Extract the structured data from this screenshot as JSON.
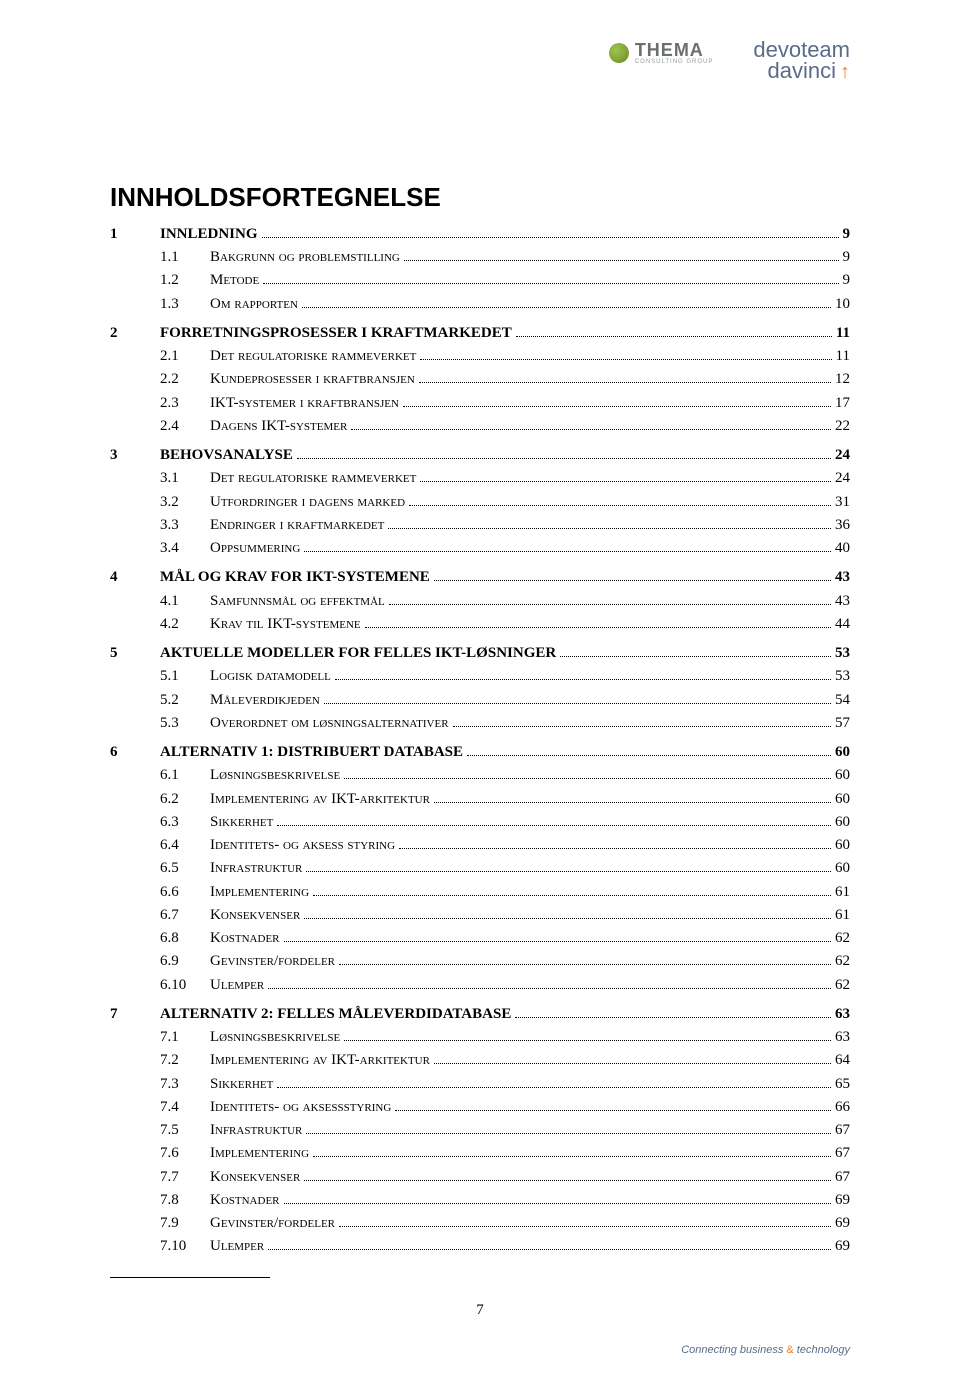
{
  "logos": {
    "thema_text": "THEMA",
    "thema_sub": "CONSULTING GROUP",
    "devoteam1": "devoteam",
    "devoteam2": "davinci",
    "arrow": "↑"
  },
  "title": "INNHOLDSFORTEGNELSE",
  "page_number": "7",
  "footer": {
    "pre": "Connecting business ",
    "amp": "&",
    "post": " technology"
  },
  "entries": [
    {
      "lvl": 1,
      "num": "1",
      "label": "INNLEDNING",
      "pg": "9"
    },
    {
      "lvl": 2,
      "num": "1.1",
      "label": "Bakgrunn og problemstilling",
      "pg": "9"
    },
    {
      "lvl": 2,
      "num": "1.2",
      "label": "Metode",
      "pg": "9"
    },
    {
      "lvl": 2,
      "num": "1.3",
      "label": "Om rapporten",
      "pg": "10"
    },
    {
      "lvl": 1,
      "num": "2",
      "label": "FORRETNINGSPROSESSER I KRAFTMARKEDET",
      "pg": "11"
    },
    {
      "lvl": 2,
      "num": "2.1",
      "label": "Det regulatoriske rammeverket",
      "pg": "11"
    },
    {
      "lvl": 2,
      "num": "2.2",
      "label": "Kundeprosesser i kraftbransjen",
      "pg": "12"
    },
    {
      "lvl": 2,
      "num": "2.3",
      "label": "IKT-systemer i kraftbransjen",
      "pg": "17"
    },
    {
      "lvl": 2,
      "num": "2.4",
      "label": "Dagens IKT-systemer",
      "pg": "22"
    },
    {
      "lvl": 1,
      "num": "3",
      "label": "BEHOVSANALYSE",
      "pg": "24"
    },
    {
      "lvl": 2,
      "num": "3.1",
      "label": "Det regulatoriske rammeverket",
      "pg": "24"
    },
    {
      "lvl": 2,
      "num": "3.2",
      "label": "Utfordringer i dagens marked",
      "pg": "31"
    },
    {
      "lvl": 2,
      "num": "3.3",
      "label": "Endringer i kraftmarkedet",
      "pg": "36"
    },
    {
      "lvl": 2,
      "num": "3.4",
      "label": "Oppsummering",
      "pg": "40"
    },
    {
      "lvl": 1,
      "num": "4",
      "label": "MÅL OG KRAV FOR IKT-SYSTEMENE",
      "pg": "43"
    },
    {
      "lvl": 2,
      "num": "4.1",
      "label": "Samfunnsmål og effektmål",
      "pg": "43"
    },
    {
      "lvl": 2,
      "num": "4.2",
      "label": "Krav til IKT-systemene",
      "pg": "44"
    },
    {
      "lvl": 1,
      "num": "5",
      "label": "AKTUELLE MODELLER FOR FELLES IKT-LØSNINGER",
      "pg": "53"
    },
    {
      "lvl": 2,
      "num": "5.1",
      "label": "Logisk datamodell",
      "pg": "53"
    },
    {
      "lvl": 2,
      "num": "5.2",
      "label": "Måleverdikjeden",
      "pg": "54"
    },
    {
      "lvl": 2,
      "num": "5.3",
      "label": "Overordnet om løsningsalternativer",
      "pg": "57"
    },
    {
      "lvl": 1,
      "num": "6",
      "label": "ALTERNATIV 1: DISTRIBUERT DATABASE",
      "pg": "60"
    },
    {
      "lvl": 2,
      "num": "6.1",
      "label": "Løsningsbeskrivelse",
      "pg": "60"
    },
    {
      "lvl": 2,
      "num": "6.2",
      "label": "Implementering av IKT-arkitektur",
      "pg": "60"
    },
    {
      "lvl": 2,
      "num": "6.3",
      "label": "Sikkerhet",
      "pg": "60"
    },
    {
      "lvl": 2,
      "num": "6.4",
      "label": "Identitets- og aksess styring",
      "pg": "60"
    },
    {
      "lvl": 2,
      "num": "6.5",
      "label": "Infrastruktur",
      "pg": "60"
    },
    {
      "lvl": 2,
      "num": "6.6",
      "label": "Implementering",
      "pg": "61"
    },
    {
      "lvl": 2,
      "num": "6.7",
      "label": "Konsekvenser",
      "pg": "61"
    },
    {
      "lvl": 2,
      "num": "6.8",
      "label": "Kostnader",
      "pg": "62"
    },
    {
      "lvl": 2,
      "num": "6.9",
      "label": "Gevinster/fordeler",
      "pg": "62"
    },
    {
      "lvl": 2,
      "num": "6.10",
      "label": "Ulemper",
      "pg": "62"
    },
    {
      "lvl": 1,
      "num": "7",
      "label": "ALTERNATIV 2: FELLES MÅLEVERDIDATABASE",
      "pg": "63"
    },
    {
      "lvl": 2,
      "num": "7.1",
      "label": "Løsningsbeskrivelse",
      "pg": "63"
    },
    {
      "lvl": 2,
      "num": "7.2",
      "label": "Implementering av IKT-arkitektur",
      "pg": "64"
    },
    {
      "lvl": 2,
      "num": "7.3",
      "label": "Sikkerhet",
      "pg": "65"
    },
    {
      "lvl": 2,
      "num": "7.4",
      "label": "Identitets- og aksessstyring",
      "pg": "66"
    },
    {
      "lvl": 2,
      "num": "7.5",
      "label": "Infrastruktur",
      "pg": "67"
    },
    {
      "lvl": 2,
      "num": "7.6",
      "label": "Implementering",
      "pg": "67"
    },
    {
      "lvl": 2,
      "num": "7.7",
      "label": "Konsekvenser",
      "pg": "67"
    },
    {
      "lvl": 2,
      "num": "7.8",
      "label": "Kostnader",
      "pg": "69"
    },
    {
      "lvl": 2,
      "num": "7.9",
      "label": "Gevinster/fordeler",
      "pg": "69"
    },
    {
      "lvl": 2,
      "num": "7.10",
      "label": "Ulemper",
      "pg": "69"
    }
  ]
}
